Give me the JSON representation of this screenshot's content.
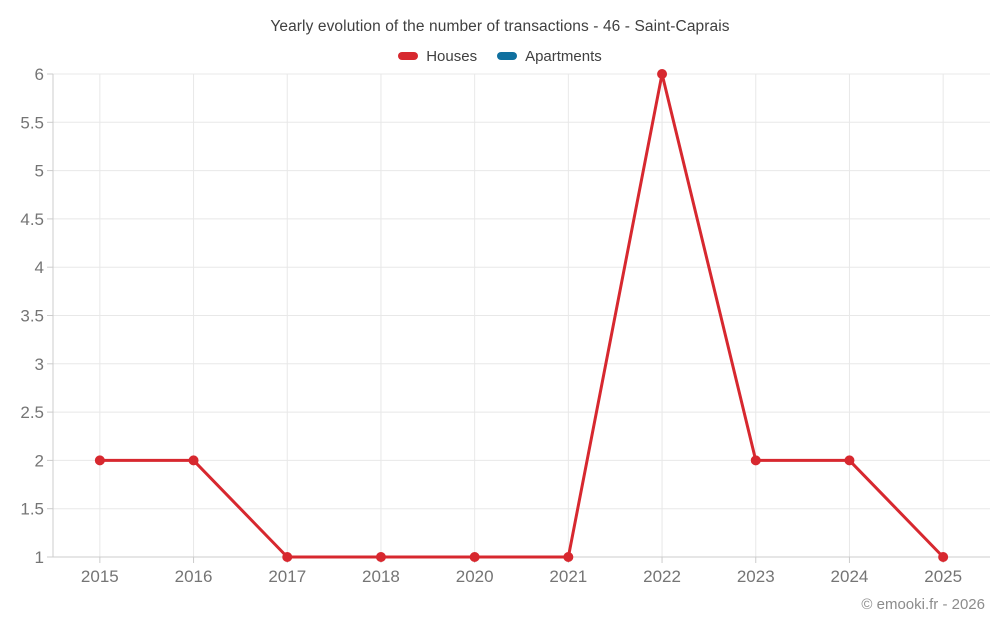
{
  "page": {
    "copyright": "© emooki.fr - 2026"
  },
  "chart_data": {
    "type": "line",
    "title": "Yearly evolution of the number of transactions - 46 - Saint-Caprais",
    "categories": [
      "2015",
      "2016",
      "2017",
      "2018",
      "2020",
      "2021",
      "2022",
      "2023",
      "2024",
      "2025"
    ],
    "series": [
      {
        "name": "Houses",
        "color": "#d7282f",
        "values": [
          2,
          2,
          1,
          1,
          1,
          1,
          6,
          2,
          2,
          1
        ]
      },
      {
        "name": "Apartments",
        "color": "#10709f",
        "values": []
      }
    ],
    "xlabel": "",
    "ylabel": "",
    "ylim": [
      1,
      6
    ],
    "y_tick_step": 0.5,
    "y_tick_labels": [
      "1",
      "1.5",
      "2",
      "2.5",
      "3",
      "3.5",
      "4",
      "4.5",
      "5",
      "5.5",
      "6"
    ],
    "grid": true,
    "legend_position": "top",
    "marker_radius": 5,
    "line_width": 3,
    "colors": {
      "grid": "#e8e8e8",
      "axis": "#cccccc",
      "tick_label": "#757575",
      "title_text": "#404040",
      "copyright_text": "#8c8c8c",
      "background": "#ffffff"
    }
  }
}
